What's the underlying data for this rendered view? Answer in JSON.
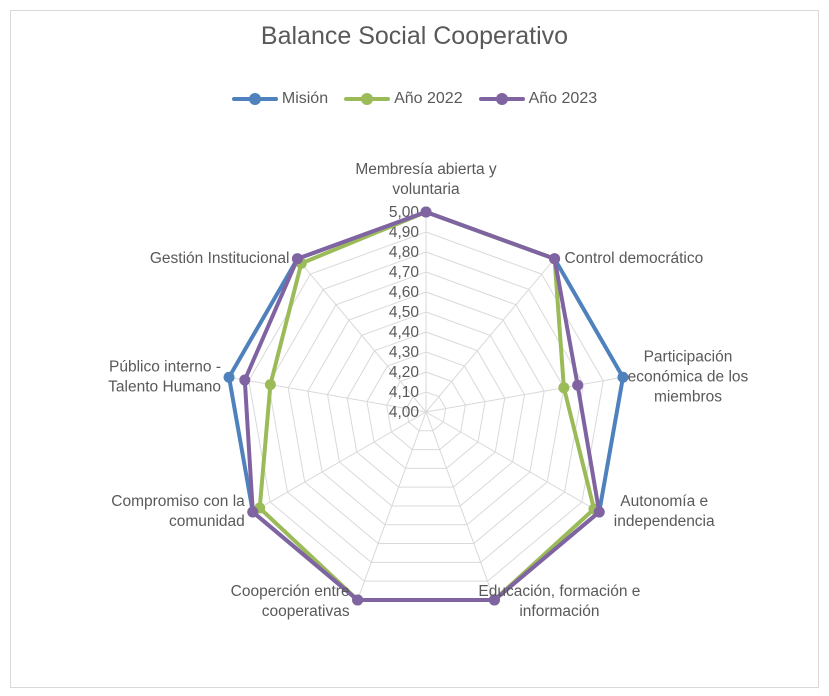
{
  "chart_data": {
    "type": "radar",
    "title": "Balance Social Cooperativo",
    "categories": [
      [
        "Membresía abierta y",
        "voluntaria"
      ],
      [
        "Control democrático"
      ],
      [
        "Participación",
        "económica de los",
        "miembros"
      ],
      [
        "Autonomía e",
        "independencia"
      ],
      [
        "Educación, formación e",
        "información"
      ],
      [
        "Cooperción entre",
        "cooperativas"
      ],
      [
        "Compromiso con la",
        "comunidad"
      ],
      [
        "Público interno -",
        "Talento Humano"
      ],
      [
        "Gestión Institucional"
      ]
    ],
    "ticks": [
      "4,00",
      "4,10",
      "4,20",
      "4,30",
      "4,40",
      "4,50",
      "4,60",
      "4,70",
      "4,80",
      "4,90",
      "5,00"
    ],
    "rlim": [
      4.0,
      5.0
    ],
    "legend_position": "top",
    "series": [
      {
        "name": "Misión",
        "color": "#4f81bd",
        "values": [
          5.0,
          5.0,
          5.0,
          5.0,
          5.0,
          5.0,
          5.0,
          5.0,
          5.0
        ]
      },
      {
        "name": "Año 2022",
        "color": "#9bbb59",
        "values": [
          5.0,
          5.0,
          4.7,
          4.97,
          5.0,
          5.0,
          4.96,
          4.79,
          4.97
        ]
      },
      {
        "name": "Año 2023",
        "color": "#8064a2",
        "values": [
          5.0,
          5.0,
          4.77,
          5.0,
          5.0,
          5.0,
          5.0,
          4.92,
          5.0
        ]
      }
    ]
  }
}
